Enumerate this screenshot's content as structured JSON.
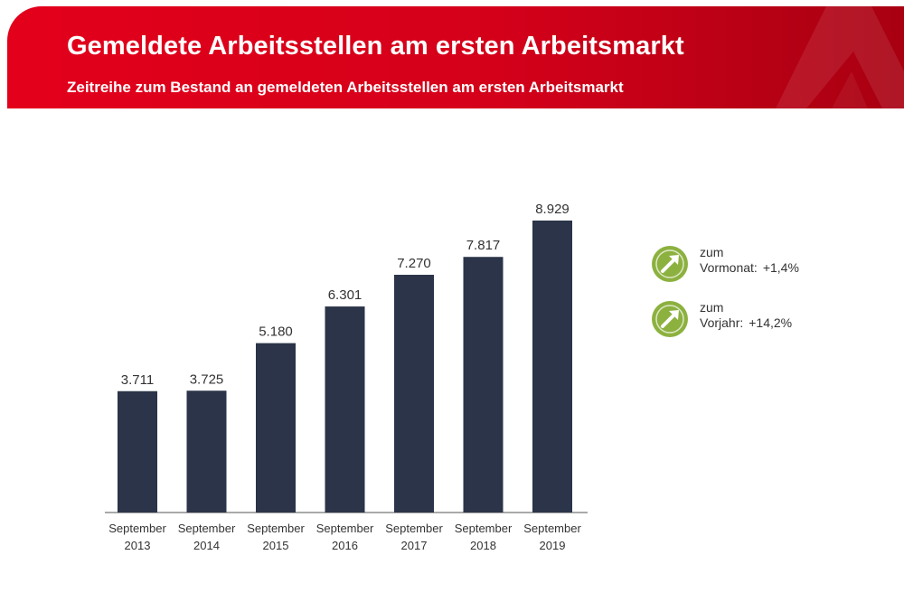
{
  "header": {
    "title": "Gemeldete Arbeitsstellen am ersten Arbeitsmarkt",
    "subtitle": "Zeitreihe zum Bestand an gemeldeten Arbeitsstellen am ersten Arbeitsmarkt"
  },
  "colors": {
    "header_red": "#e3001b",
    "bar": "#2b3448",
    "kpi_green": "#8cb13f"
  },
  "chart_data": {
    "type": "bar",
    "title": "",
    "xlabel": "",
    "ylabel": "",
    "grid": false,
    "categories": [
      [
        "September",
        "2013"
      ],
      [
        "September",
        "2014"
      ],
      [
        "September",
        "2015"
      ],
      [
        "September",
        "2016"
      ],
      [
        "September",
        "2017"
      ],
      [
        "September",
        "2018"
      ],
      [
        "September",
        "2019"
      ]
    ],
    "values": [
      3711,
      3725,
      5180,
      6301,
      7270,
      7817,
      8929
    ],
    "value_labels": [
      "3.711",
      "3.725",
      "5.180",
      "6.301",
      "7.270",
      "7.817",
      "8.929"
    ],
    "ylim": [
      0,
      10000
    ]
  },
  "kpis": [
    {
      "icon": "arrow-up-right-icon",
      "line1": "zum",
      "line2_label": "Vormonat:",
      "value": "+1,4%"
    },
    {
      "icon": "arrow-up-right-icon",
      "line1": "zum",
      "line2_label": "Vorjahr:",
      "value": "+14,2%"
    }
  ]
}
